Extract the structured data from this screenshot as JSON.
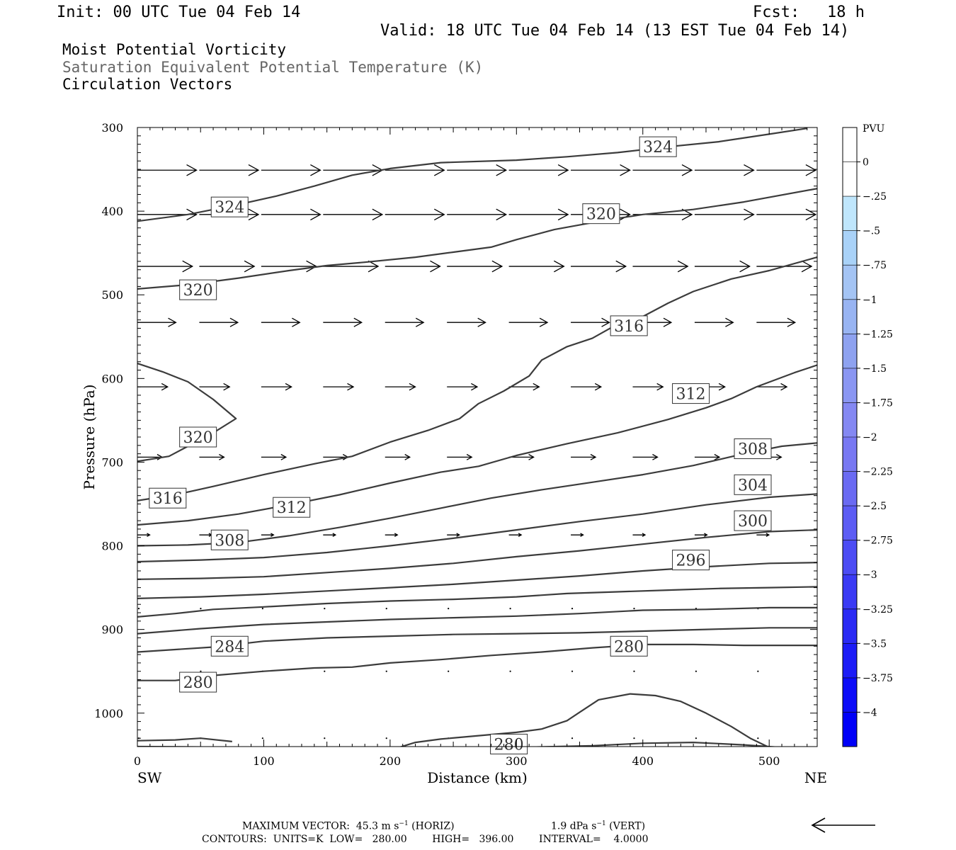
{
  "header": {
    "init": "Init: 00 UTC Tue 04 Feb 14",
    "fcst_label": "Fcst:",
    "fcst_value": "18 h",
    "valid": "Valid: 18 UTC Tue 04 Feb 14 (13 EST Tue 04 Feb 14)"
  },
  "fields": {
    "line1": "Moist Potential Vorticity",
    "line2": "Saturation Equivalent Potential Temperature (K)",
    "line3": "Circulation Vectors"
  },
  "footer": {
    "max_vector_prefix": "MAXIMUM VECTOR:  45.3 m s",
    "exp1": "−1",
    "horiz": " (HORIZ)",
    "vert_prefix": "1.9 dPa s",
    "exp2": "−1",
    "vert": " (VERT)",
    "contours": "CONTOURS:  UNITS=K  LOW=   280.00        HIGH=   396.00        INTERVAL=    4.0000"
  },
  "chart_data": {
    "type": "cross-section",
    "xlabel": "Distance (km)",
    "ylabel": "Pressure (hPa)",
    "xlim": [
      0,
      538
    ],
    "ylim": [
      300,
      1040
    ],
    "x_ticks": [
      0,
      100,
      200,
      300,
      400,
      500
    ],
    "y_ticks": [
      300,
      400,
      500,
      600,
      700,
      800,
      900,
      1000
    ],
    "end_labels": {
      "left": "SW",
      "right": "NE"
    },
    "colorbar": {
      "unit": "PVU",
      "labels": [
        "0",
        "−.25",
        "−.5",
        "−.75",
        "−1",
        "−1.25",
        "−1.5",
        "−1.75",
        "−2",
        "−2.25",
        "−2.5",
        "−2.75",
        "−3",
        "−3.25",
        "−3.5",
        "−3.75",
        "−4"
      ],
      "colors": [
        "#ffffff",
        "#ffffff",
        "#bfe6fc",
        "#a9d2f8",
        "#a4c4f4",
        "#98b4f2",
        "#8ea2f0",
        "#8a96f2",
        "#8488f2",
        "#7878f2",
        "#6a6af2",
        "#5c5cf4",
        "#4c4cf4",
        "#3a3af4",
        "#2a2af4",
        "#1c1cf6",
        "#0c0cf8",
        "#0000f8"
      ]
    },
    "contour_lines": [
      {
        "label": "324",
        "label_at": [
          73,
          395
        ],
        "points": [
          [
            0,
            412
          ],
          [
            40,
            404
          ],
          [
            80,
            392
          ],
          [
            110,
            382
          ],
          [
            140,
            370
          ],
          [
            170,
            357
          ],
          [
            200,
            349
          ],
          [
            240,
            342
          ],
          [
            300,
            339
          ],
          [
            340,
            335
          ],
          [
            380,
            330
          ],
          [
            420,
            323
          ],
          [
            460,
            317
          ],
          [
            500,
            308
          ],
          [
            530,
            301
          ]
        ]
      },
      {
        "label": "324",
        "label_at": [
          412,
          323
        ],
        "points": []
      },
      {
        "label": "320",
        "label_at": [
          48,
          494
        ],
        "points": [
          [
            0,
            493
          ],
          [
            40,
            488
          ],
          [
            80,
            480
          ],
          [
            120,
            471
          ],
          [
            150,
            465
          ],
          [
            180,
            461
          ],
          [
            220,
            455
          ],
          [
            250,
            449
          ],
          [
            280,
            443
          ],
          [
            300,
            434
          ],
          [
            330,
            422
          ],
          [
            370,
            411
          ],
          [
            400,
            404
          ],
          [
            440,
            398
          ],
          [
            480,
            389
          ],
          [
            538,
            373
          ]
        ]
      },
      {
        "label": "320",
        "label_at": [
          367,
          403
        ],
        "points": []
      },
      {
        "label": "320",
        "label_at": [
          48,
          670
        ],
        "points": [
          [
            0,
            582
          ],
          [
            20,
            592
          ],
          [
            40,
            604
          ],
          [
            60,
            625
          ],
          [
            78,
            648
          ],
          [
            60,
            665
          ],
          [
            40,
            681
          ],
          [
            25,
            693
          ],
          [
            0,
            699
          ]
        ]
      },
      {
        "label": "316",
        "label_at": [
          24,
          743
        ],
        "points": [
          [
            0,
            746
          ],
          [
            30,
            739
          ],
          [
            60,
            729
          ],
          [
            100,
            715
          ],
          [
            140,
            702
          ],
          [
            170,
            693
          ],
          [
            200,
            676
          ],
          [
            230,
            662
          ],
          [
            255,
            648
          ],
          [
            270,
            630
          ],
          [
            290,
            615
          ],
          [
            310,
            597
          ],
          [
            320,
            578
          ],
          [
            340,
            562
          ],
          [
            360,
            552
          ],
          [
            380,
            535
          ],
          [
            400,
            526
          ],
          [
            420,
            510
          ],
          [
            440,
            496
          ],
          [
            470,
            481
          ],
          [
            500,
            471
          ],
          [
            538,
            455
          ]
        ]
      },
      {
        "label": "316",
        "label_at": [
          389,
          537
        ],
        "points": []
      },
      {
        "label": "312",
        "label_at": [
          122,
          754
        ],
        "points": [
          [
            0,
            775
          ],
          [
            40,
            770
          ],
          [
            80,
            762
          ],
          [
            120,
            751
          ],
          [
            160,
            739
          ],
          [
            200,
            725
          ],
          [
            240,
            712
          ],
          [
            270,
            705
          ],
          [
            300,
            692
          ],
          [
            340,
            678
          ],
          [
            380,
            665
          ],
          [
            420,
            649
          ],
          [
            450,
            635
          ],
          [
            470,
            624
          ],
          [
            490,
            610
          ],
          [
            520,
            593
          ],
          [
            538,
            584
          ]
        ]
      },
      {
        "label": "312",
        "label_at": [
          438,
          618
        ],
        "points": []
      },
      {
        "label": "308",
        "label_at": [
          73,
          793
        ],
        "points": [
          [
            0,
            800
          ],
          [
            40,
            799
          ],
          [
            80,
            796
          ],
          [
            120,
            788
          ],
          [
            160,
            778
          ],
          [
            200,
            767
          ],
          [
            240,
            755
          ],
          [
            280,
            743
          ],
          [
            320,
            733
          ],
          [
            360,
            724
          ],
          [
            400,
            715
          ],
          [
            440,
            704
          ],
          [
            480,
            690
          ],
          [
            510,
            681
          ],
          [
            538,
            677
          ]
        ]
      },
      {
        "label": "308",
        "label_at": [
          487,
          684
        ],
        "points": []
      },
      {
        "label": "304",
        "label_at": [
          487,
          727
        ],
        "points": [
          [
            0,
            819
          ],
          [
            50,
            817
          ],
          [
            100,
            814
          ],
          [
            150,
            808
          ],
          [
            200,
            800
          ],
          [
            250,
            791
          ],
          [
            300,
            781
          ],
          [
            350,
            771
          ],
          [
            400,
            762
          ],
          [
            450,
            751
          ],
          [
            500,
            742
          ],
          [
            538,
            738
          ]
        ]
      },
      {
        "label": "300",
        "label_at": [
          487,
          770
        ],
        "points": [
          [
            0,
            840
          ],
          [
            50,
            839
          ],
          [
            100,
            837
          ],
          [
            150,
            832
          ],
          [
            200,
            827
          ],
          [
            250,
            821
          ],
          [
            300,
            813
          ],
          [
            350,
            806
          ],
          [
            400,
            798
          ],
          [
            450,
            790
          ],
          [
            500,
            783
          ],
          [
            538,
            781
          ]
        ]
      },
      {
        "label": "296",
        "label_at": [
          438,
          817
        ],
        "points": [
          [
            0,
            863
          ],
          [
            50,
            861
          ],
          [
            100,
            858
          ],
          [
            150,
            854
          ],
          [
            200,
            850
          ],
          [
            250,
            846
          ],
          [
            300,
            841
          ],
          [
            350,
            836
          ],
          [
            400,
            830
          ],
          [
            450,
            825
          ],
          [
            500,
            821
          ],
          [
            538,
            820
          ]
        ]
      },
      {
        "label": "",
        "label_at": null,
        "points": [
          [
            0,
            885
          ],
          [
            30,
            881
          ],
          [
            60,
            876
          ],
          [
            100,
            873
          ],
          [
            150,
            869
          ],
          [
            200,
            866
          ],
          [
            250,
            864
          ],
          [
            300,
            861
          ],
          [
            340,
            857
          ],
          [
            380,
            855
          ],
          [
            420,
            853
          ],
          [
            460,
            851
          ],
          [
            500,
            850
          ],
          [
            538,
            849
          ]
        ]
      },
      {
        "label": "",
        "label_at": null,
        "points": [
          [
            0,
            905
          ],
          [
            50,
            899
          ],
          [
            100,
            894
          ],
          [
            150,
            891
          ],
          [
            200,
            888
          ],
          [
            250,
            886
          ],
          [
            300,
            884
          ],
          [
            350,
            881
          ],
          [
            400,
            877
          ],
          [
            450,
            876
          ],
          [
            500,
            874
          ],
          [
            538,
            874
          ]
        ]
      },
      {
        "label": "284",
        "label_at": [
          73,
          920
        ],
        "points": [
          [
            0,
            927
          ],
          [
            30,
            924
          ],
          [
            60,
            921
          ],
          [
            100,
            914
          ],
          [
            150,
            910
          ],
          [
            200,
            908
          ],
          [
            250,
            906
          ],
          [
            300,
            905
          ],
          [
            350,
            904
          ],
          [
            400,
            902
          ],
          [
            450,
            900
          ],
          [
            500,
            898
          ],
          [
            538,
            898
          ]
        ]
      },
      {
        "label": "280",
        "label_at": [
          48,
          963
        ],
        "points": [
          [
            0,
            961
          ],
          [
            30,
            961
          ],
          [
            60,
            955
          ],
          [
            100,
            950
          ],
          [
            140,
            946
          ],
          [
            170,
            945
          ],
          [
            200,
            940
          ],
          [
            240,
            936
          ],
          [
            280,
            931
          ],
          [
            320,
            927
          ],
          [
            360,
            922
          ],
          [
            400,
            918
          ],
          [
            440,
            918
          ],
          [
            480,
            919
          ],
          [
            538,
            919
          ]
        ]
      },
      {
        "label": "280",
        "label_at": [
          389,
          920
        ],
        "points": []
      },
      {
        "label": "280",
        "label_at": [
          294,
          1037
        ],
        "points": [
          [
            207,
            1041
          ],
          [
            220,
            1035
          ],
          [
            240,
            1031
          ],
          [
            270,
            1027
          ],
          [
            300,
            1023
          ],
          [
            320,
            1019
          ],
          [
            340,
            1009
          ],
          [
            350,
            999
          ],
          [
            365,
            984
          ],
          [
            390,
            977
          ],
          [
            410,
            979
          ],
          [
            430,
            986
          ],
          [
            450,
            1000
          ],
          [
            470,
            1016
          ],
          [
            485,
            1030
          ],
          [
            500,
            1041
          ]
        ]
      },
      {
        "label": "",
        "label_at": null,
        "points": [
          [
            0,
            1033
          ],
          [
            30,
            1032
          ],
          [
            50,
            1030
          ],
          [
            75,
            1034
          ]
        ]
      },
      {
        "label": "",
        "label_at": null,
        "points": [
          [
            0,
            1040
          ],
          [
            100,
            1041
          ],
          [
            200,
            1043
          ],
          [
            300,
            1041
          ],
          [
            360,
            1039
          ],
          [
            400,
            1036
          ],
          [
            440,
            1035
          ],
          [
            480,
            1038
          ],
          [
            538,
            1044
          ]
        ]
      }
    ],
    "vector_rows": [
      {
        "p": 351,
        "xs": [
          0,
          49,
          98,
          147,
          196,
          245,
          294,
          343,
          392,
          441,
          490
        ],
        "u": 43,
        "w": 0
      },
      {
        "p": 404,
        "xs": [
          0,
          49,
          98,
          147,
          196,
          245,
          294,
          343,
          392,
          441,
          490
        ],
        "u": 43,
        "w": 0
      },
      {
        "p": 466,
        "xs": [
          0,
          49,
          98,
          147,
          196,
          245,
          294,
          343,
          392,
          441,
          490
        ],
        "u": 40,
        "w": 0
      },
      {
        "p": 533,
        "xs": [
          0,
          49,
          98,
          147,
          196,
          245,
          294,
          343,
          392,
          441,
          490
        ],
        "u": 28,
        "w": 0
      },
      {
        "p": 610,
        "xs": [
          0,
          49,
          98,
          147,
          196,
          245,
          294,
          343,
          392,
          441,
          490
        ],
        "u": 22,
        "w": 0
      },
      {
        "p": 694,
        "xs": [
          0,
          49,
          98,
          147,
          196,
          245,
          294,
          343,
          392,
          441,
          490
        ],
        "u": 18,
        "w": 0
      },
      {
        "p": 787,
        "xs": [
          0,
          49,
          98,
          147,
          196,
          245,
          294,
          343,
          392,
          441,
          490
        ],
        "u": 9,
        "w": 0
      },
      {
        "p": 875,
        "xs": [
          0,
          49,
          98,
          147,
          196,
          245,
          294,
          343,
          392,
          441,
          490
        ],
        "u": 2,
        "w": 0
      },
      {
        "p": 950,
        "xs": [
          49,
          98,
          147,
          196,
          245,
          294,
          343,
          392,
          441,
          490
        ],
        "u": 1,
        "w": 0
      },
      {
        "p": 1030,
        "xs": [
          0,
          49,
          98,
          147,
          196,
          245,
          294,
          343,
          392,
          441,
          490
        ],
        "u": 1,
        "w": 0
      }
    ]
  }
}
